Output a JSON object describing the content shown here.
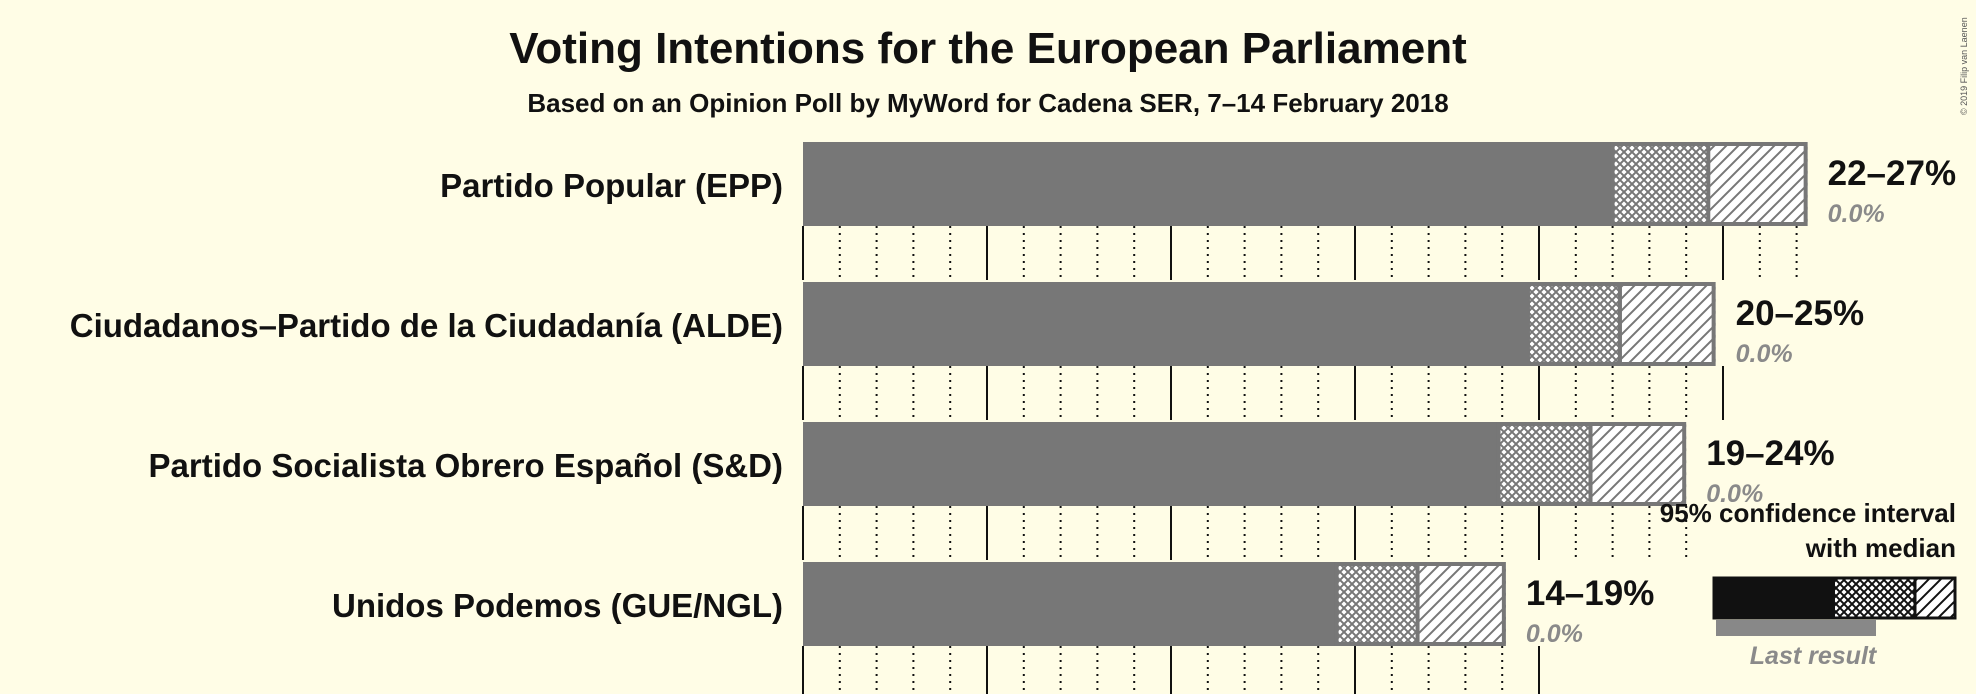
{
  "chart_data": {
    "type": "bar",
    "orientation": "horizontal",
    "title": "Voting Intentions for the European Parliament",
    "subtitle": "Based on an Opinion Poll by MyWord for Cadena SER, 7–14 February 2018",
    "copyright": "© 2019 Filip van Laenen",
    "x_range": [
      0,
      28
    ],
    "major_gridlines": [
      0,
      5,
      10,
      15,
      20,
      25
    ],
    "minor_gridlines": [
      1,
      2,
      3,
      4,
      6,
      7,
      8,
      9,
      11,
      12,
      13,
      14,
      16,
      17,
      18,
      19,
      21,
      22,
      23,
      24,
      26,
      27
    ],
    "series_legend": {
      "ci_label_line1": "95% confidence interval",
      "ci_label_line2": "with median",
      "last_result_label": "Last result"
    },
    "parties": [
      {
        "name": "Partido Popular (EPP)",
        "ci_low": 22.0,
        "median": 24.6,
        "ci_high": 27.3,
        "range_label": "22–27%",
        "last_result": 0.0,
        "last_result_label": "0.0%"
      },
      {
        "name": "Ciudadanos–Partido de la Ciudadanía (ALDE)",
        "ci_low": 19.7,
        "median": 22.2,
        "ci_high": 24.8,
        "range_label": "20–25%",
        "last_result": 0.0,
        "last_result_label": "0.0%"
      },
      {
        "name": "Partido Socialista Obrero Español (S&D)",
        "ci_low": 18.9,
        "median": 21.4,
        "ci_high": 24.0,
        "range_label": "19–24%",
        "last_result": 0.0,
        "last_result_label": "0.0%"
      },
      {
        "name": "Unidos Podemos (GUE/NGL)",
        "ci_low": 14.5,
        "median": 16.7,
        "ci_high": 19.1,
        "range_label": "14–19%",
        "last_result": 0.0,
        "last_result_label": "0.0%"
      }
    ],
    "colors": {
      "background": "#fffde6",
      "bar": "#777777",
      "hatch_stroke": "#777777",
      "legend_bar": "#111111",
      "last_result": "#888888"
    }
  }
}
